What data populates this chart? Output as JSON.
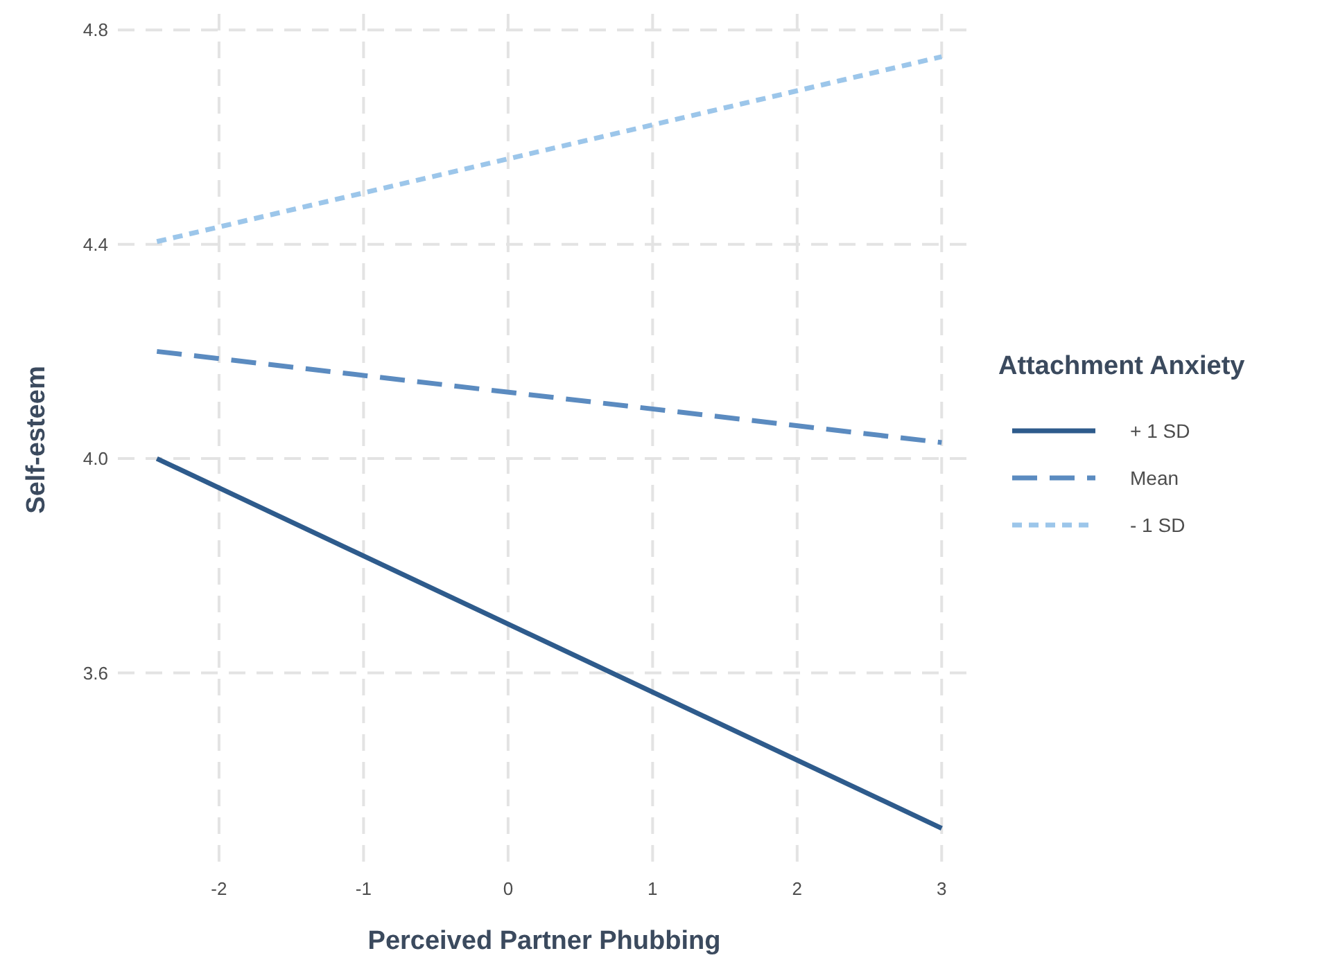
{
  "chart_data": {
    "type": "line",
    "xlabel": "Perceived Partner Phubbing",
    "ylabel": "Self-esteem",
    "legend_title": "Attachment Anxiety",
    "legend": "right",
    "grid": true,
    "xlim": [
      -2.7,
      3.2
    ],
    "xticks": [
      -2,
      -1,
      0,
      1,
      2,
      3
    ],
    "ylim": [
      3.24,
      4.83
    ],
    "yticks": [
      {
        "value": 3.6,
        "label": "3.6"
      },
      {
        "value": 4,
        "label": "4.0"
      },
      {
        "value": 4.4,
        "label": "4.4"
      },
      {
        "value": 4.8,
        "label": "4.8"
      }
    ],
    "x": [
      -2.43,
      3
    ],
    "series": [
      {
        "name": "+ 1 SD",
        "color": "#2e5b8c",
        "line_style": "solid",
        "values": [
          4.0,
          3.31
        ]
      },
      {
        "name": "Mean",
        "color": "#5b8bc0",
        "line_style": "dashed",
        "values": [
          4.2,
          4.03
        ]
      },
      {
        "name": "- 1 SD",
        "color": "#9cc6ea",
        "line_style": "dotted",
        "values": [
          4.405,
          4.75
        ]
      }
    ]
  }
}
